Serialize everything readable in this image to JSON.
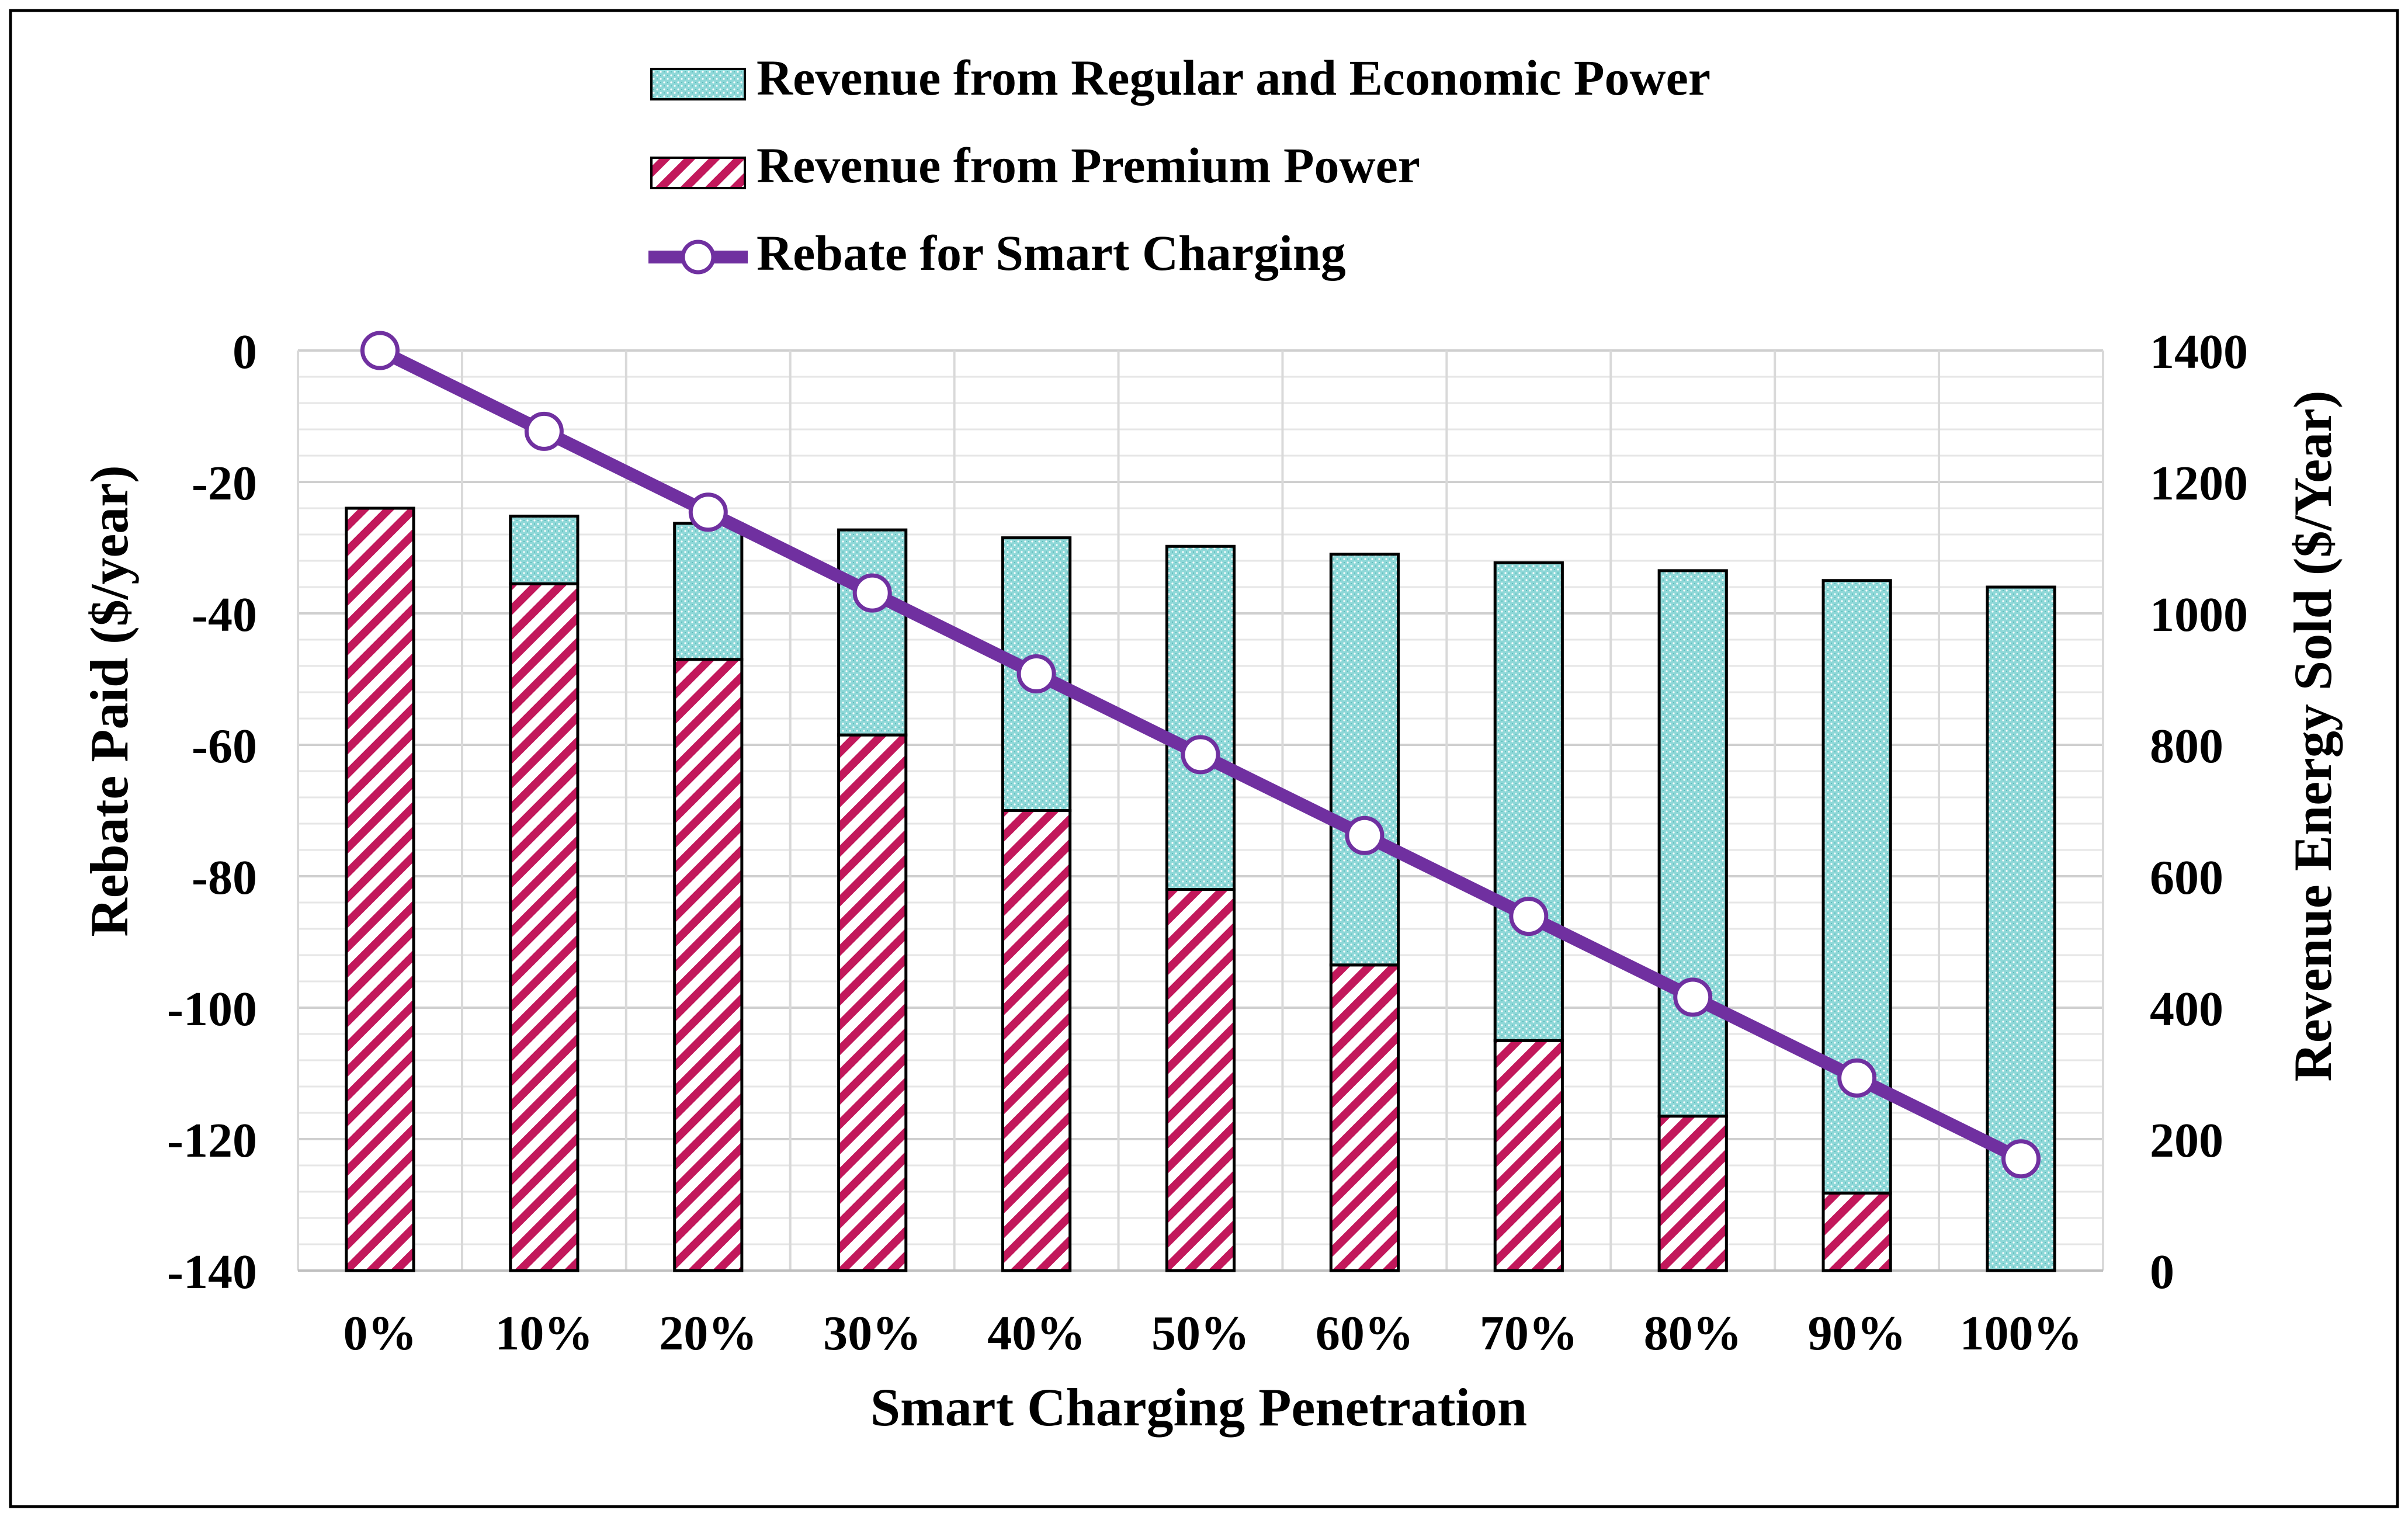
{
  "chart_data": {
    "type": "bar",
    "title": "",
    "xlabel": "Smart Charging Penetration",
    "ylabel_left": "Rebate Paid ($/year)",
    "ylabel_right": "Revenue Energy Sold ($/Year)",
    "categories": [
      "0%",
      "10%",
      "20%",
      "30%",
      "40%",
      "50%",
      "60%",
      "70%",
      "80%",
      "90%",
      "100%"
    ],
    "ylim_left": [
      -140,
      0
    ],
    "ylim_right": [
      0,
      1400
    ],
    "yticks_left": [
      "0",
      "-20",
      "-40",
      "-60",
      "-80",
      "-100",
      "-120",
      "-140"
    ],
    "yticks_right": [
      "1400",
      "1200",
      "1000",
      "800",
      "600",
      "400",
      "200",
      "0"
    ],
    "legend_position": "top-center",
    "grid": true,
    "series": [
      {
        "name": "Revenue from Premium Power",
        "kind": "stacked-bar",
        "axis": "right",
        "pattern": "diagonal-stripes",
        "color": "#c2185b",
        "values": [
          1160,
          1045,
          930,
          815,
          700,
          580,
          465,
          350,
          235,
          118,
          0
        ]
      },
      {
        "name": "Revenue from Regular and Economic Power",
        "kind": "stacked-bar",
        "axis": "right",
        "pattern": "dotted",
        "color": "#7fd1d1",
        "values": [
          0,
          103,
          207,
          312,
          415,
          522,
          625,
          727,
          830,
          932,
          1040
        ]
      },
      {
        "name": "Rebate for Smart Charging",
        "kind": "line",
        "axis": "left",
        "color": "#7030a0",
        "values": [
          0,
          -12.3,
          -24.6,
          -36.9,
          -49.2,
          -61.5,
          -73.8,
          -86.1,
          -98.4,
          -110.7,
          -123.0
        ]
      }
    ],
    "legend": [
      "Revenue from Regular and Economic Power",
      "Revenue from Premium Power",
      "Rebate for Smart Charging"
    ]
  }
}
